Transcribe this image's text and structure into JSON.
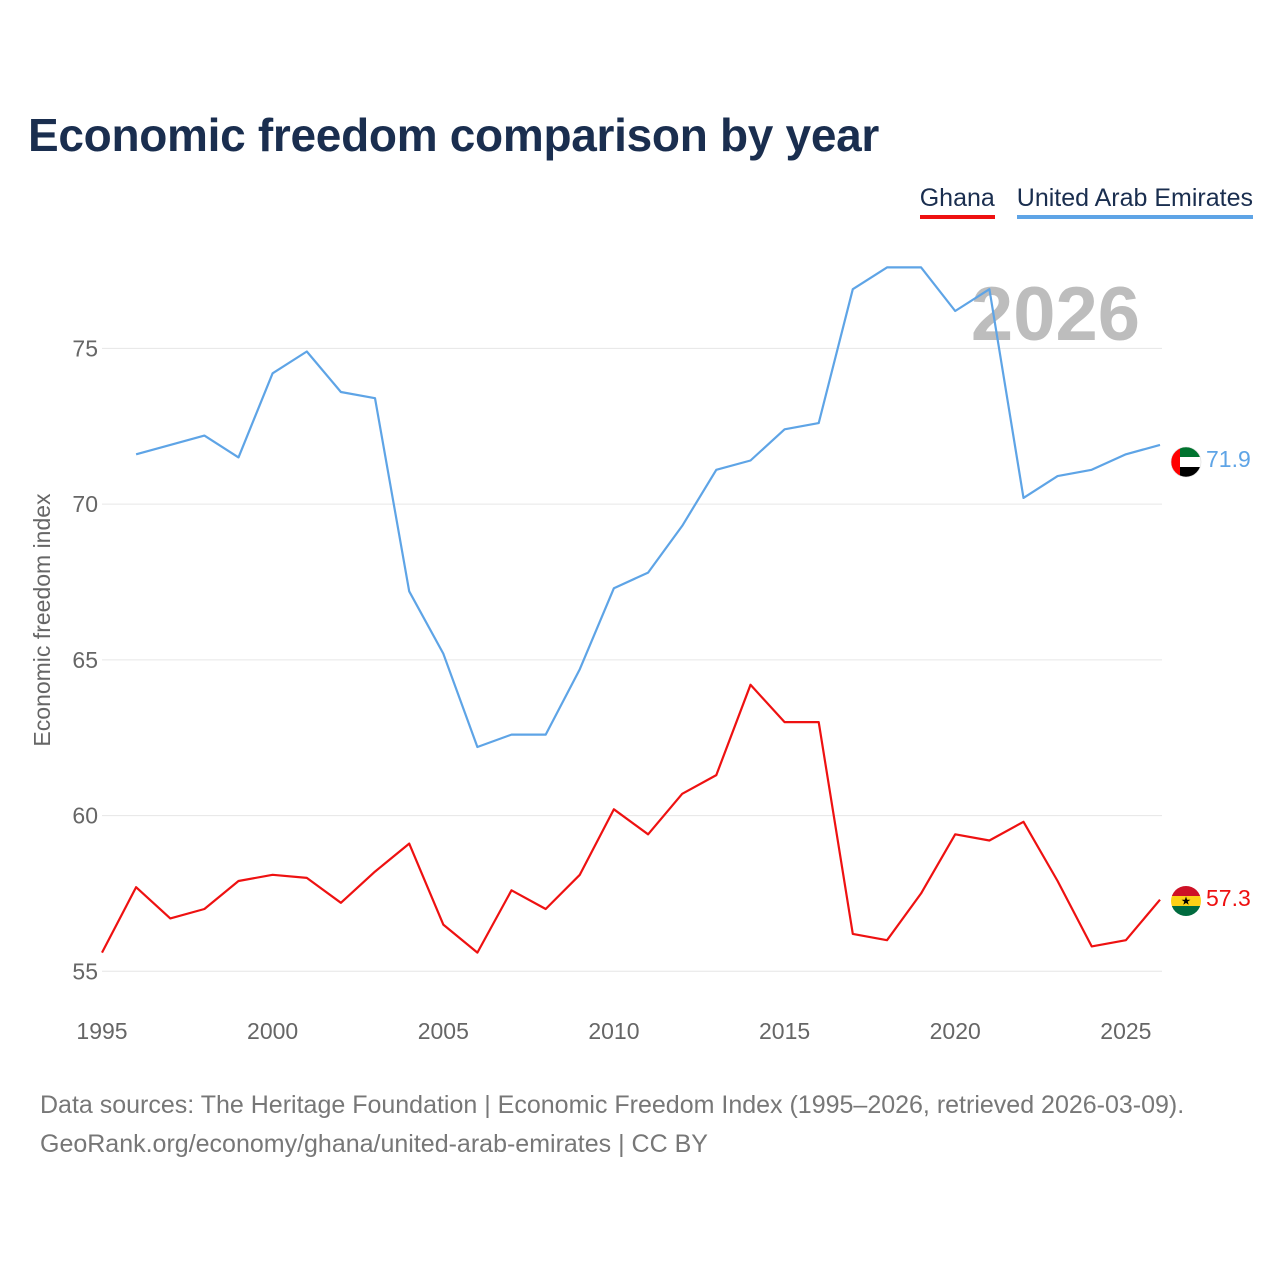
{
  "chart_data": {
    "type": "line",
    "title": "Economic freedom comparison by year",
    "xlabel": "",
    "ylabel": "Economic freedom index",
    "xlim": [
      1995,
      2026
    ],
    "ylim": [
      54.4,
      78.8
    ],
    "x_ticks": [
      1995,
      2000,
      2005,
      2010,
      2015,
      2020,
      2025
    ],
    "y_ticks": [
      55,
      60,
      65,
      70,
      75
    ],
    "grid": true,
    "legend_position": "top-right",
    "year_annotation": "2026",
    "series": [
      {
        "name": "Ghana",
        "color": "#ee1111",
        "end_label": "57.3",
        "x": [
          1995,
          1996,
          1997,
          1998,
          1999,
          2000,
          2001,
          2002,
          2003,
          2004,
          2005,
          2006,
          2007,
          2008,
          2009,
          2010,
          2011,
          2012,
          2013,
          2014,
          2015,
          2016,
          2017,
          2018,
          2019,
          2020,
          2021,
          2022,
          2023,
          2024,
          2025,
          2026
        ],
        "values": [
          55.6,
          57.7,
          56.7,
          57.0,
          57.9,
          58.1,
          58.0,
          57.2,
          58.2,
          59.1,
          56.5,
          55.6,
          57.6,
          57.0,
          58.1,
          60.2,
          59.4,
          60.7,
          61.3,
          64.2,
          63.0,
          63.0,
          56.2,
          56.0,
          57.5,
          59.4,
          59.2,
          59.8,
          57.9,
          55.8,
          56.0,
          57.3
        ]
      },
      {
        "name": "United Arab Emirates",
        "color": "#5ea4e6",
        "end_label": "71.9",
        "x": [
          1996,
          1997,
          1998,
          1999,
          2000,
          2001,
          2002,
          2003,
          2004,
          2005,
          2006,
          2007,
          2008,
          2009,
          2010,
          2011,
          2012,
          2013,
          2014,
          2015,
          2016,
          2017,
          2018,
          2019,
          2020,
          2021,
          2022,
          2023,
          2024,
          2025,
          2026
        ],
        "values": [
          71.6,
          71.9,
          72.2,
          71.5,
          74.2,
          74.9,
          73.6,
          73.4,
          67.2,
          65.2,
          62.2,
          62.6,
          62.6,
          64.7,
          67.3,
          67.8,
          69.3,
          71.1,
          71.4,
          72.4,
          72.6,
          76.9,
          77.6,
          77.6,
          76.2,
          76.9,
          70.2,
          70.9,
          71.1,
          71.6,
          71.9
        ]
      }
    ]
  },
  "footer": {
    "line1": "Data sources: The Heritage Foundation | Economic Freedom Index (1995–2026, retrieved 2026-03-09).",
    "line2": "GeoRank.org/economy/ghana/united-arab-emirates | CC BY"
  }
}
